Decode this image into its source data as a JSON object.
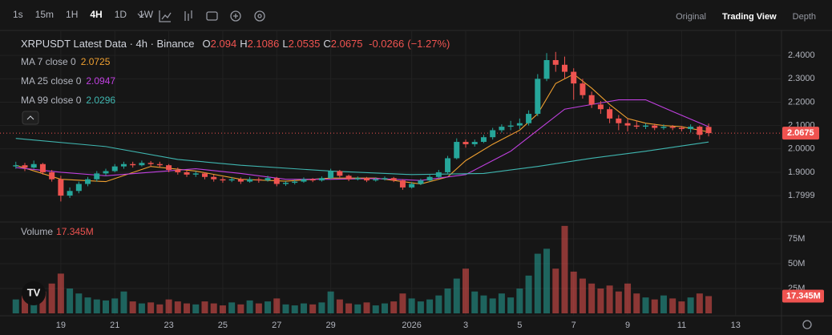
{
  "toolbar": {
    "intervals": [
      "1s",
      "15m",
      "1H",
      "4H",
      "1D",
      "1W"
    ],
    "active_interval": 3,
    "views": [
      "Original",
      "Trading View",
      "Depth"
    ],
    "active_view": 1
  },
  "chart_data": {
    "type": "candlestick",
    "title": "XRPUSDT Latest Data · 4h · Binance",
    "ohlc": [
      {
        "key": "O",
        "value": 2.094,
        "label": "2.0940"
      },
      {
        "key": "H",
        "value": 2.1086
      },
      {
        "key": "L",
        "value": 2.0535
      },
      {
        "key": "C",
        "value": 2.0675
      }
    ],
    "change": -0.0266,
    "change_pct": {
      "value": -1.27,
      "label": "(−1.27%)"
    },
    "up_color": "#26a69a",
    "down_color": "#ef5350",
    "grid": true,
    "candles": [
      [
        1.925,
        1.945,
        1.915,
        1.93
      ],
      [
        1.93,
        1.94,
        1.905,
        1.92
      ],
      [
        1.92,
        1.95,
        1.915,
        1.935
      ],
      [
        1.935,
        1.94,
        1.89,
        1.9
      ],
      [
        1.9,
        1.91,
        1.86,
        1.87
      ],
      [
        1.87,
        1.885,
        1.775,
        1.8
      ],
      [
        1.8,
        1.835,
        1.79,
        1.82
      ],
      [
        1.82,
        1.86,
        1.81,
        1.85
      ],
      [
        1.85,
        1.88,
        1.84,
        1.87
      ],
      [
        1.87,
        1.905,
        1.86,
        1.895
      ],
      [
        1.895,
        1.915,
        1.885,
        1.905
      ],
      [
        1.905,
        1.935,
        1.9,
        1.925
      ],
      [
        1.925,
        1.945,
        1.915,
        1.935
      ],
      [
        1.935,
        1.945,
        1.92,
        1.93
      ],
      [
        1.93,
        1.95,
        1.925,
        1.94
      ],
      [
        1.94,
        1.948,
        1.925,
        1.935
      ],
      [
        1.935,
        1.945,
        1.92,
        1.93
      ],
      [
        1.93,
        1.935,
        1.9,
        1.91
      ],
      [
        1.91,
        1.92,
        1.89,
        1.9
      ],
      [
        1.9,
        1.908,
        1.88,
        1.89
      ],
      [
        1.89,
        1.905,
        1.88,
        1.895
      ],
      [
        1.895,
        1.9,
        1.87,
        1.88
      ],
      [
        1.88,
        1.89,
        1.86,
        1.87
      ],
      [
        1.87,
        1.88,
        1.855,
        1.865
      ],
      [
        1.865,
        1.88,
        1.858,
        1.87
      ],
      [
        1.87,
        1.878,
        1.85,
        1.86
      ],
      [
        1.86,
        1.88,
        1.855,
        1.87
      ],
      [
        1.87,
        1.878,
        1.855,
        1.865
      ],
      [
        1.865,
        1.885,
        1.86,
        1.875
      ],
      [
        1.875,
        1.88,
        1.84,
        1.85
      ],
      [
        1.85,
        1.862,
        1.842,
        1.855
      ],
      [
        1.855,
        1.868,
        1.848,
        1.86
      ],
      [
        1.86,
        1.878,
        1.855,
        1.87
      ],
      [
        1.87,
        1.875,
        1.858,
        1.865
      ],
      [
        1.865,
        1.882,
        1.86,
        1.875
      ],
      [
        1.875,
        1.915,
        1.87,
        1.905
      ],
      [
        1.905,
        1.91,
        1.878,
        1.885
      ],
      [
        1.885,
        1.89,
        1.862,
        1.87
      ],
      [
        1.87,
        1.882,
        1.865,
        1.875
      ],
      [
        1.875,
        1.88,
        1.858,
        1.865
      ],
      [
        1.865,
        1.878,
        1.86,
        1.87
      ],
      [
        1.87,
        1.882,
        1.865,
        1.875
      ],
      [
        1.875,
        1.88,
        1.858,
        1.865
      ],
      [
        1.865,
        1.87,
        1.825,
        1.835
      ],
      [
        1.835,
        1.858,
        1.83,
        1.85
      ],
      [
        1.85,
        1.872,
        1.845,
        1.865
      ],
      [
        1.865,
        1.888,
        1.86,
        1.88
      ],
      [
        1.88,
        1.91,
        1.875,
        1.9
      ],
      [
        1.9,
        1.97,
        1.895,
        1.96
      ],
      [
        1.96,
        2.045,
        1.955,
        2.03
      ],
      [
        2.03,
        2.04,
        2.005,
        2.02
      ],
      [
        2.02,
        2.04,
        2.01,
        2.03
      ],
      [
        2.03,
        2.06,
        2.025,
        2.05
      ],
      [
        2.05,
        2.09,
        2.04,
        2.08
      ],
      [
        2.08,
        2.105,
        2.07,
        2.095
      ],
      [
        2.095,
        2.12,
        2.08,
        2.1
      ],
      [
        2.1,
        2.13,
        2.085,
        2.11
      ],
      [
        2.11,
        2.165,
        2.1,
        2.15
      ],
      [
        2.15,
        2.32,
        2.14,
        2.3
      ],
      [
        2.3,
        2.41,
        2.29,
        2.38
      ],
      [
        2.38,
        2.415,
        2.33,
        2.36
      ],
      [
        2.36,
        2.395,
        2.3,
        2.33
      ],
      [
        2.33,
        2.345,
        2.21,
        2.28
      ],
      [
        2.28,
        2.3,
        2.215,
        2.23
      ],
      [
        2.23,
        2.245,
        2.175,
        2.19
      ],
      [
        2.19,
        2.205,
        2.15,
        2.17
      ],
      [
        2.17,
        2.18,
        2.11,
        2.13
      ],
      [
        2.13,
        2.145,
        2.08,
        2.11
      ],
      [
        2.11,
        2.13,
        2.075,
        2.1
      ],
      [
        2.1,
        2.12,
        2.085,
        2.095
      ],
      [
        2.095,
        2.11,
        2.085,
        2.1
      ],
      [
        2.1,
        2.108,
        2.08,
        2.09
      ],
      [
        2.09,
        2.105,
        2.082,
        2.095
      ],
      [
        2.095,
        2.102,
        2.08,
        2.09
      ],
      [
        2.09,
        2.098,
        2.075,
        2.085
      ],
      [
        2.085,
        2.105,
        2.07,
        2.095
      ],
      [
        2.095,
        2.1,
        2.04,
        2.06
      ],
      [
        2.094,
        2.1086,
        2.0535,
        2.0675
      ]
    ],
    "xlim": [
      -1.76,
      85.1
    ],
    "xticks": [
      {
        "value": 5,
        "label": "19"
      },
      {
        "value": 11,
        "label": "21"
      },
      {
        "value": 17,
        "label": "23"
      },
      {
        "value": 23,
        "label": "25"
      },
      {
        "value": 29,
        "label": "27"
      },
      {
        "value": 35,
        "label": "29"
      },
      {
        "value": 44,
        "label": "2026"
      },
      {
        "value": 50,
        "label": "3"
      },
      {
        "value": 56,
        "label": "5"
      },
      {
        "value": 62,
        "label": "7"
      },
      {
        "value": 68,
        "label": "9"
      },
      {
        "value": 74,
        "label": "11"
      },
      {
        "value": 80,
        "label": "13"
      }
    ],
    "ylim": [
      1.694,
      2.5
    ],
    "yticks": [
      {
        "value": 2.4,
        "label": "2.4000"
      },
      {
        "value": 2.3,
        "label": "2.3000"
      },
      {
        "value": 2.2,
        "label": "2.2000"
      },
      {
        "value": 2.1,
        "label": "2.1000"
      },
      {
        "value": 2.0,
        "label": "2.0000"
      },
      {
        "value": 1.9,
        "label": "1.9000"
      },
      1.7999
    ],
    "last_price": 2.0675,
    "moving_averages": [
      {
        "name": "MA 7 close 0",
        "color": "#f0a030",
        "last": 2.0725,
        "x": [
          0,
          5,
          10,
          15,
          20,
          25,
          30,
          35,
          40,
          45,
          48,
          50,
          53,
          56,
          58,
          60,
          62,
          64,
          66,
          68,
          70,
          72,
          74,
          77
        ],
        "values": [
          1.93,
          1.87,
          1.86,
          1.925,
          1.905,
          1.87,
          1.862,
          1.875,
          1.875,
          1.85,
          1.88,
          1.95,
          2.02,
          2.08,
          2.15,
          2.28,
          2.32,
          2.26,
          2.19,
          2.13,
          2.11,
          2.1,
          2.095,
          2.0725
        ]
      },
      {
        "name": "MA 25 close 0",
        "color": "#c040e0",
        "last": 2.0947,
        "x": [
          0,
          5,
          10,
          15,
          20,
          25,
          30,
          35,
          40,
          45,
          50,
          55,
          58,
          61,
          64,
          67,
          70,
          73,
          77
        ],
        "values": [
          1.92,
          1.9,
          1.885,
          1.9,
          1.915,
          1.895,
          1.87,
          1.87,
          1.873,
          1.865,
          1.89,
          1.99,
          2.08,
          2.17,
          2.19,
          2.21,
          2.21,
          2.16,
          2.0947
        ]
      },
      {
        "name": "MA 99 close 0",
        "color": "#3fb6b0",
        "last": 2.0296,
        "x": [
          0,
          10,
          18,
          25,
          35,
          44,
          52,
          58,
          64,
          70,
          77
        ],
        "values": [
          2.045,
          2.01,
          1.955,
          1.93,
          1.905,
          1.89,
          1.895,
          1.925,
          1.96,
          1.99,
          2.0296
        ]
      }
    ],
    "volume": {
      "name": "Volume",
      "last": {
        "value": 17345000,
        "label": "17.345M"
      },
      "ylim": [
        0,
        89500000
      ],
      "yticks": [
        {
          "value": 25000000,
          "label": "25M"
        },
        {
          "value": 50000000,
          "label": "50M"
        },
        {
          "value": 75000000,
          "label": "75M"
        }
      ],
      "values": [
        14000000,
        18000000,
        12000000,
        22000000,
        30000000,
        40000000,
        25000000,
        20000000,
        16000000,
        14000000,
        13000000,
        15000000,
        22000000,
        12000000,
        10000000,
        11000000,
        9000000,
        14000000,
        12000000,
        10000000,
        9000000,
        12000000,
        10000000,
        8000000,
        11000000,
        9000000,
        13000000,
        10000000,
        12000000,
        15000000,
        9000000,
        8000000,
        10000000,
        9000000,
        11000000,
        22000000,
        14000000,
        10000000,
        9000000,
        11000000,
        8000000,
        10000000,
        12000000,
        20000000,
        15000000,
        12000000,
        14000000,
        18000000,
        25000000,
        35000000,
        45000000,
        22000000,
        18000000,
        15000000,
        20000000,
        16000000,
        25000000,
        38000000,
        60000000,
        65000000,
        45000000,
        88000000,
        42000000,
        35000000,
        30000000,
        25000000,
        28000000,
        22000000,
        30000000,
        20000000,
        16000000,
        14000000,
        18000000,
        15000000,
        12000000,
        16000000,
        20000000,
        17345000
      ]
    }
  }
}
